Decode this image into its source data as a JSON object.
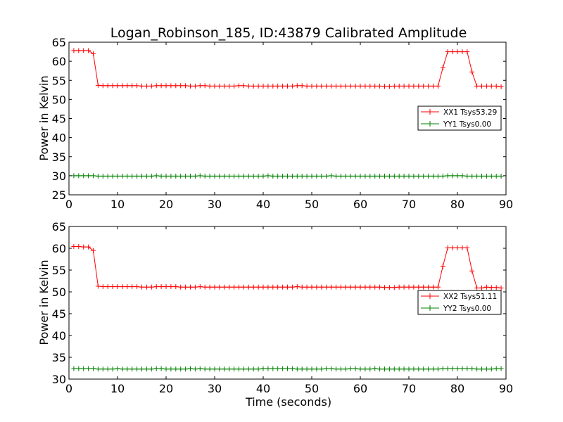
{
  "chart_data": [
    {
      "type": "line",
      "title": "Logan_Robinson_185, ID:43879 Calibrated Amplitude",
      "xlabel": "",
      "ylabel": "Power in Kelvin",
      "xlim": [
        0,
        90
      ],
      "ylim": [
        25,
        65
      ],
      "x_ticks": [
        "0",
        "10",
        "20",
        "30",
        "40",
        "50",
        "60",
        "70",
        "80",
        "90"
      ],
      "y_ticks": [
        "25",
        "30",
        "35",
        "40",
        "45",
        "50",
        "55",
        "60",
        "65"
      ],
      "legend_position": "right",
      "series": [
        {
          "name": "XX1 Tsys53.29",
          "color": "#ff0000",
          "x": [
            1,
            2,
            3,
            4,
            5,
            6,
            7,
            8,
            9,
            10,
            11,
            12,
            13,
            14,
            15,
            16,
            17,
            18,
            19,
            20,
            21,
            22,
            23,
            24,
            25,
            26,
            27,
            28,
            29,
            30,
            31,
            32,
            33,
            34,
            35,
            36,
            37,
            38,
            39,
            40,
            41,
            42,
            43,
            44,
            45,
            46,
            47,
            48,
            49,
            50,
            51,
            52,
            53,
            54,
            55,
            56,
            57,
            58,
            59,
            60,
            61,
            62,
            63,
            64,
            65,
            66,
            67,
            68,
            69,
            70,
            71,
            72,
            73,
            74,
            75,
            76,
            77,
            78,
            79,
            80,
            81,
            82,
            83,
            84,
            85,
            86,
            87,
            88,
            89
          ],
          "y": [
            62.8,
            62.8,
            62.8,
            62.8,
            62.0,
            53.7,
            53.6,
            53.6,
            53.6,
            53.6,
            53.6,
            53.6,
            53.6,
            53.6,
            53.5,
            53.5,
            53.5,
            53.6,
            53.6,
            53.6,
            53.6,
            53.6,
            53.6,
            53.6,
            53.5,
            53.5,
            53.6,
            53.6,
            53.5,
            53.5,
            53.5,
            53.5,
            53.5,
            53.5,
            53.6,
            53.6,
            53.5,
            53.5,
            53.5,
            53.5,
            53.5,
            53.5,
            53.5,
            53.5,
            53.5,
            53.5,
            53.6,
            53.6,
            53.5,
            53.5,
            53.5,
            53.5,
            53.5,
            53.5,
            53.5,
            53.5,
            53.5,
            53.5,
            53.5,
            53.5,
            53.5,
            53.5,
            53.5,
            53.5,
            53.4,
            53.4,
            53.5,
            53.5,
            53.5,
            53.5,
            53.5,
            53.5,
            53.5,
            53.5,
            53.5,
            53.5,
            58.3,
            62.5,
            62.5,
            62.5,
            62.5,
            62.5,
            57.2,
            53.5,
            53.5,
            53.5,
            53.5,
            53.5,
            53.3
          ]
        },
        {
          "name": "YY1 Tsys0.00",
          "color": "#008000",
          "x": [
            1,
            2,
            3,
            4,
            5,
            6,
            7,
            8,
            9,
            10,
            11,
            12,
            13,
            14,
            15,
            16,
            17,
            18,
            19,
            20,
            21,
            22,
            23,
            24,
            25,
            26,
            27,
            28,
            29,
            30,
            31,
            32,
            33,
            34,
            35,
            36,
            37,
            38,
            39,
            40,
            41,
            42,
            43,
            44,
            45,
            46,
            47,
            48,
            49,
            50,
            51,
            52,
            53,
            54,
            55,
            56,
            57,
            58,
            59,
            60,
            61,
            62,
            63,
            64,
            65,
            66,
            67,
            68,
            69,
            70,
            71,
            72,
            73,
            74,
            75,
            76,
            77,
            78,
            79,
            80,
            81,
            82,
            83,
            84,
            85,
            86,
            87,
            88,
            89
          ],
          "y": [
            30.0,
            30.0,
            30.0,
            30.0,
            30.0,
            29.9,
            29.9,
            29.9,
            29.9,
            29.9,
            29.9,
            29.9,
            29.9,
            29.9,
            29.9,
            29.9,
            29.9,
            30.0,
            29.9,
            29.9,
            29.9,
            29.9,
            29.9,
            29.9,
            29.9,
            29.9,
            30.0,
            29.9,
            29.9,
            29.9,
            29.9,
            29.9,
            29.9,
            29.9,
            29.9,
            29.9,
            29.9,
            29.9,
            29.9,
            29.9,
            30.0,
            29.9,
            29.9,
            29.9,
            29.9,
            29.9,
            29.9,
            29.9,
            29.9,
            29.9,
            29.9,
            29.9,
            29.9,
            30.0,
            29.9,
            29.9,
            29.9,
            29.9,
            29.9,
            29.9,
            29.9,
            29.9,
            29.9,
            29.9,
            29.9,
            29.9,
            29.9,
            29.9,
            29.9,
            29.9,
            29.9,
            29.9,
            29.9,
            29.9,
            29.9,
            29.9,
            29.9,
            30.0,
            30.0,
            30.0,
            30.0,
            29.9,
            29.9,
            29.9,
            29.9,
            29.9,
            29.9,
            29.9,
            29.9
          ]
        }
      ]
    },
    {
      "type": "line",
      "title": "",
      "xlabel": "Time (seconds)",
      "ylabel": "Power in Kelvin",
      "xlim": [
        0,
        90
      ],
      "ylim": [
        30,
        65
      ],
      "x_ticks": [
        "0",
        "10",
        "20",
        "30",
        "40",
        "50",
        "60",
        "70",
        "80",
        "90"
      ],
      "y_ticks": [
        "30",
        "35",
        "40",
        "45",
        "50",
        "55",
        "60",
        "65"
      ],
      "legend_position": "right",
      "series": [
        {
          "name": "XX2 Tsys51.11",
          "color": "#ff0000",
          "x": [
            1,
            2,
            3,
            4,
            5,
            6,
            7,
            8,
            9,
            10,
            11,
            12,
            13,
            14,
            15,
            16,
            17,
            18,
            19,
            20,
            21,
            22,
            23,
            24,
            25,
            26,
            27,
            28,
            29,
            30,
            31,
            32,
            33,
            34,
            35,
            36,
            37,
            38,
            39,
            40,
            41,
            42,
            43,
            44,
            45,
            46,
            47,
            48,
            49,
            50,
            51,
            52,
            53,
            54,
            55,
            56,
            57,
            58,
            59,
            60,
            61,
            62,
            63,
            64,
            65,
            66,
            67,
            68,
            69,
            70,
            71,
            72,
            73,
            74,
            75,
            76,
            77,
            78,
            79,
            80,
            81,
            82,
            83,
            84,
            85,
            86,
            87,
            88,
            89
          ],
          "y": [
            60.4,
            60.4,
            60.3,
            60.3,
            59.5,
            51.3,
            51.2,
            51.2,
            51.2,
            51.2,
            51.2,
            51.2,
            51.2,
            51.2,
            51.1,
            51.1,
            51.1,
            51.2,
            51.2,
            51.2,
            51.2,
            51.2,
            51.1,
            51.1,
            51.1,
            51.1,
            51.2,
            51.1,
            51.1,
            51.1,
            51.1,
            51.1,
            51.1,
            51.1,
            51.1,
            51.1,
            51.1,
            51.1,
            51.1,
            51.1,
            51.1,
            51.1,
            51.1,
            51.1,
            51.1,
            51.1,
            51.2,
            51.1,
            51.1,
            51.1,
            51.1,
            51.1,
            51.1,
            51.1,
            51.1,
            51.1,
            51.1,
            51.1,
            51.1,
            51.1,
            51.1,
            51.1,
            51.1,
            51.1,
            51.0,
            51.0,
            51.0,
            51.1,
            51.1,
            51.1,
            51.1,
            51.1,
            51.1,
            51.1,
            51.1,
            51.1,
            55.9,
            60.1,
            60.1,
            60.1,
            60.1,
            60.1,
            54.8,
            50.9,
            50.9,
            51.1,
            51.0,
            51.0,
            50.9
          ]
        },
        {
          "name": "YY2 Tsys0.00",
          "color": "#008000",
          "x": [
            1,
            2,
            3,
            4,
            5,
            6,
            7,
            8,
            9,
            10,
            11,
            12,
            13,
            14,
            15,
            16,
            17,
            18,
            19,
            20,
            21,
            22,
            23,
            24,
            25,
            26,
            27,
            28,
            29,
            30,
            31,
            32,
            33,
            34,
            35,
            36,
            37,
            38,
            39,
            40,
            41,
            42,
            43,
            44,
            45,
            46,
            47,
            48,
            49,
            50,
            51,
            52,
            53,
            54,
            55,
            56,
            57,
            58,
            59,
            60,
            61,
            62,
            63,
            64,
            65,
            66,
            67,
            68,
            69,
            70,
            71,
            72,
            73,
            74,
            75,
            76,
            77,
            78,
            79,
            80,
            81,
            82,
            83,
            84,
            85,
            86,
            87,
            88,
            89
          ],
          "y": [
            32.4,
            32.4,
            32.4,
            32.4,
            32.4,
            32.3,
            32.3,
            32.3,
            32.3,
            32.4,
            32.3,
            32.3,
            32.3,
            32.3,
            32.3,
            32.3,
            32.3,
            32.4,
            32.4,
            32.3,
            32.3,
            32.3,
            32.3,
            32.3,
            32.4,
            32.3,
            32.4,
            32.3,
            32.3,
            32.3,
            32.3,
            32.3,
            32.3,
            32.3,
            32.3,
            32.3,
            32.3,
            32.3,
            32.3,
            32.4,
            32.4,
            32.4,
            32.4,
            32.4,
            32.4,
            32.4,
            32.3,
            32.3,
            32.3,
            32.3,
            32.3,
            32.3,
            32.4,
            32.4,
            32.3,
            32.3,
            32.3,
            32.4,
            32.4,
            32.3,
            32.3,
            32.3,
            32.4,
            32.3,
            32.3,
            32.3,
            32.3,
            32.3,
            32.3,
            32.3,
            32.3,
            32.3,
            32.3,
            32.3,
            32.3,
            32.3,
            32.4,
            32.4,
            32.4,
            32.4,
            32.4,
            32.4,
            32.4,
            32.3,
            32.3,
            32.3,
            32.3,
            32.4,
            32.4
          ]
        }
      ]
    }
  ]
}
